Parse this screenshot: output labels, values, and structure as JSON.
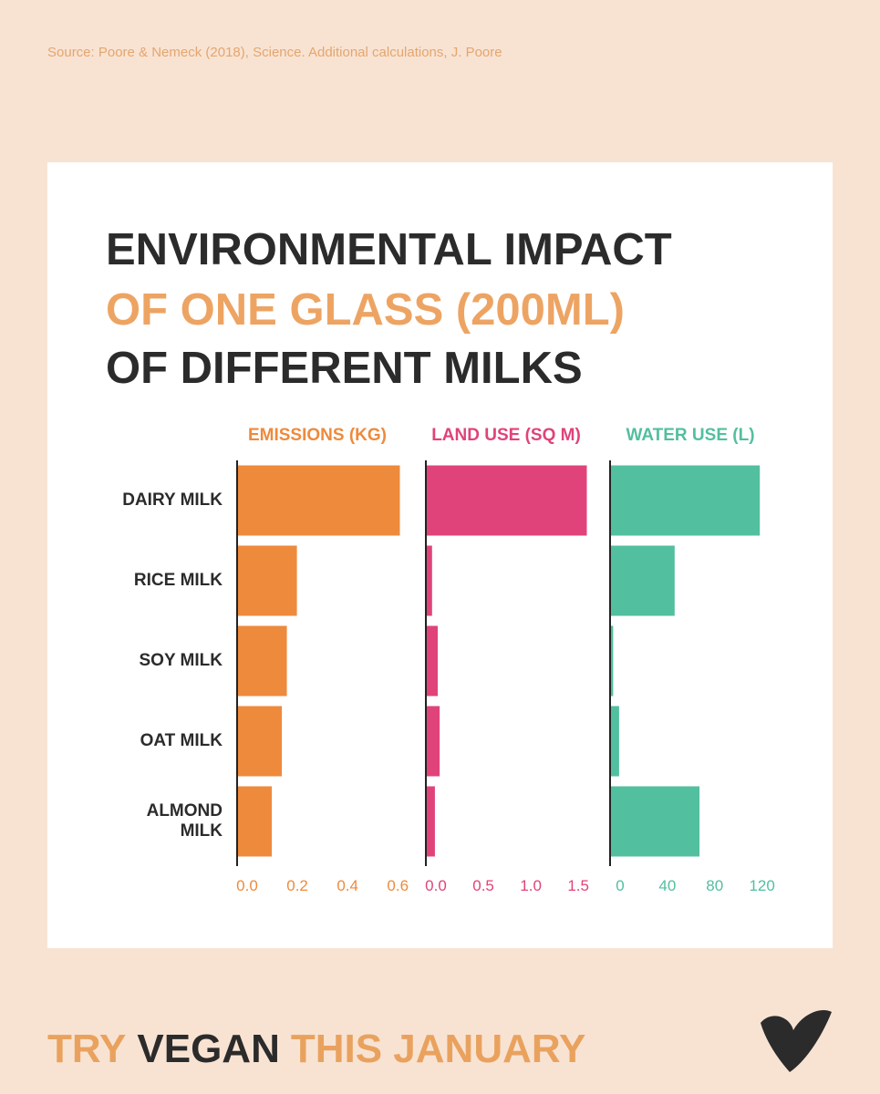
{
  "source": "Source: Poore & Nemeck (2018), Science. Additional calculations, J. Poore",
  "chart_data": {
    "type": "bar",
    "orientation": "horizontal",
    "title": [
      "ENVIRONMENTAL IMPACT",
      "OF ONE GLASS (200ML)",
      "OF DIFFERENT MILKS"
    ],
    "categories": [
      "DAIRY MILK",
      "RICE MILK",
      "SOY MILK",
      "OAT MILK",
      "ALMOND MILK"
    ],
    "panels": [
      {
        "name": "EMISSIONS (KG)",
        "color": "#ee8a3c",
        "values": [
          0.65,
          0.24,
          0.2,
          0.18,
          0.14
        ],
        "xlim": [
          0,
          0.65
        ],
        "xticks": [
          {
            "value": 0,
            "label": "0.0"
          },
          0.2,
          0.4,
          0.6
        ]
      },
      {
        "name": "LAND USE (SQ M)",
        "color": "#e0437a",
        "values": [
          1.7,
          0.07,
          0.13,
          0.15,
          0.1
        ],
        "xlim": [
          0,
          1.7
        ],
        "xticks": [
          {
            "value": 0,
            "label": "0.0"
          },
          0.5,
          {
            "value": 1,
            "label": "1.0"
          },
          1.5
        ]
      },
      {
        "name": "WATER USE (L)",
        "color": "#52bf9f",
        "values": [
          127,
          55,
          3,
          8,
          76
        ],
        "xlim": [
          0,
          128
        ],
        "xticks": [
          0,
          40,
          80,
          120
        ]
      }
    ]
  },
  "footer": [
    "TRY",
    "VEGAN",
    "THIS JANUARY"
  ]
}
